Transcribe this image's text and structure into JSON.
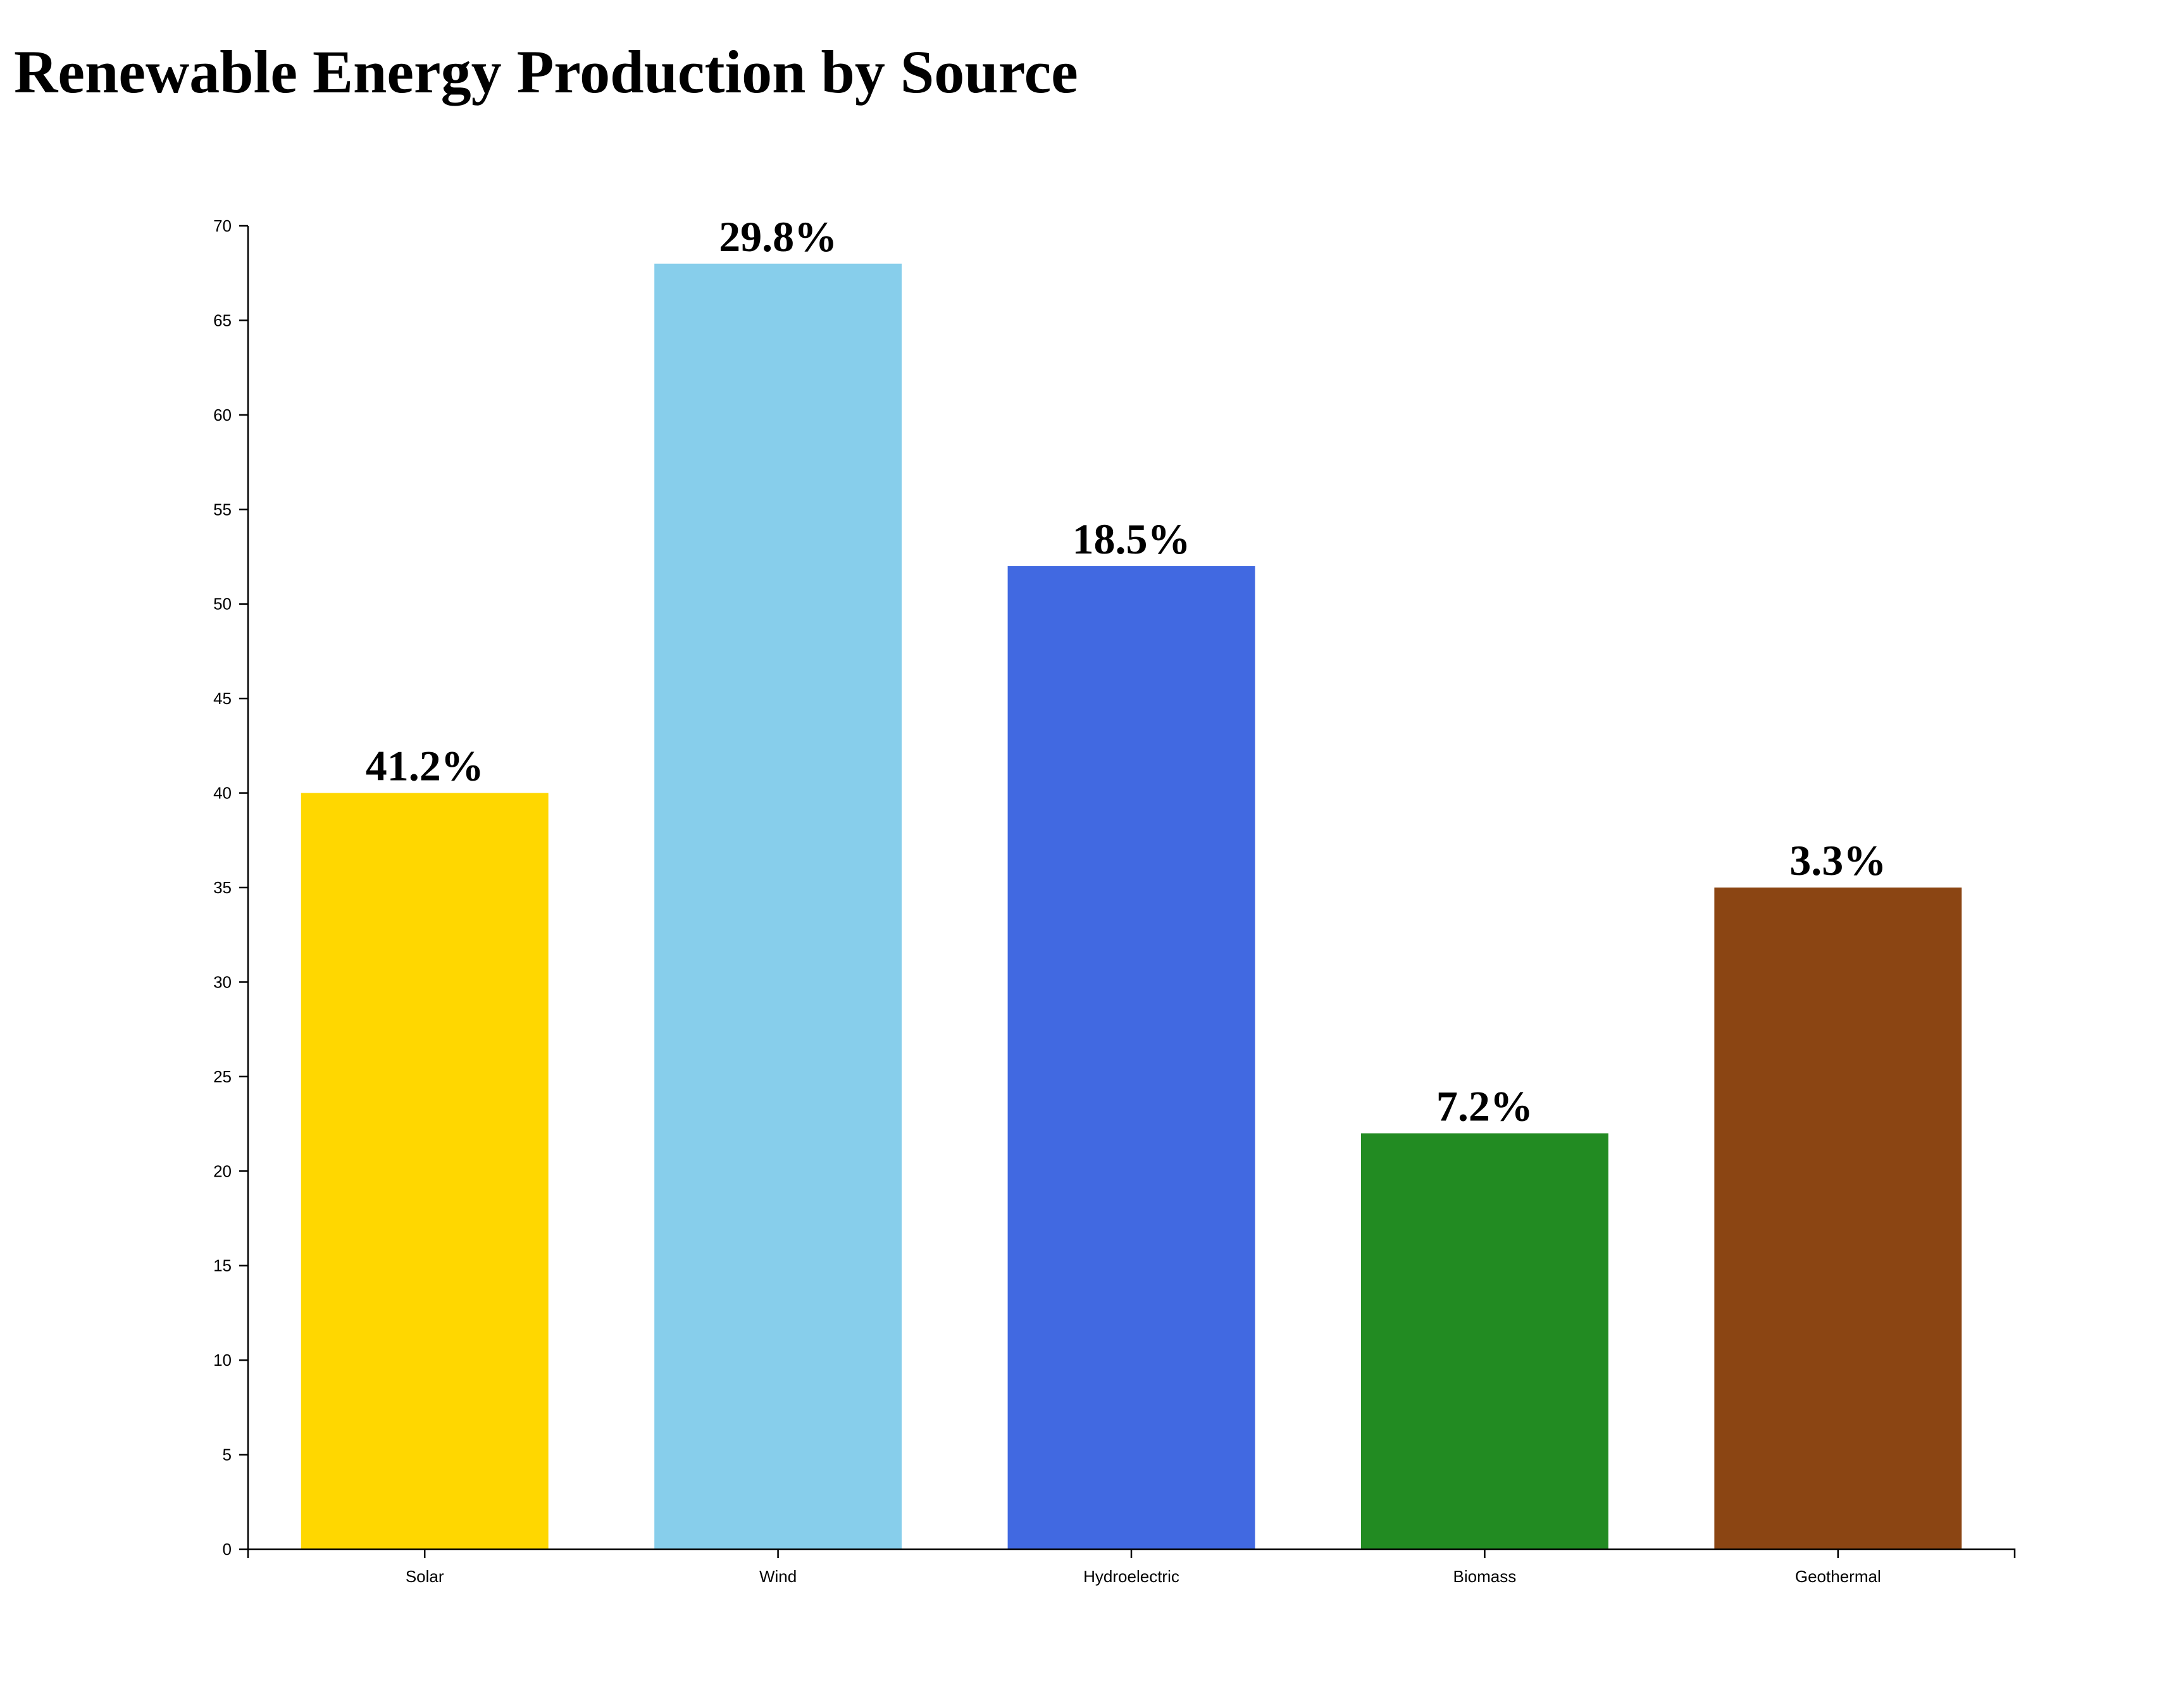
{
  "chart_data": {
    "type": "bar",
    "title": "Renewable Energy Production by Source",
    "xlabel": "",
    "ylabel": "",
    "categories": [
      "Solar",
      "Wind",
      "Hydroelectric",
      "Biomass",
      "Geothermal"
    ],
    "values": [
      40,
      68,
      52,
      22,
      35
    ],
    "data_labels": [
      "41.2%",
      "29.8%",
      "18.5%",
      "7.2%",
      "3.3%"
    ],
    "colors": [
      "#FFD700",
      "#87CEEB",
      "#4169E1",
      "#228B22",
      "#8B4513"
    ],
    "ylim": [
      0,
      70
    ],
    "yticks": [
      0,
      5,
      10,
      15,
      20,
      25,
      30,
      35,
      40,
      45,
      50,
      55,
      60,
      65,
      70
    ],
    "grid": false,
    "legend": "none"
  }
}
